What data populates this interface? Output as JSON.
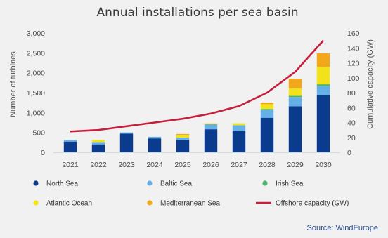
{
  "chart_data": {
    "type": "bar",
    "title": "Annual installations per sea basin",
    "ylabel": "Number of turbines",
    "y2label": "Cumulative capacity (GW)",
    "categories": [
      "2021",
      "2022",
      "2023",
      "2024",
      "2025",
      "2026",
      "2027",
      "2028",
      "2029",
      "2030"
    ],
    "ylim": [
      0,
      3000
    ],
    "y2lim": [
      0,
      160
    ],
    "yticks": [
      "0",
      "500",
      "1,000",
      "1,500",
      "2,000",
      "2,500",
      "3,000"
    ],
    "y2ticks": [
      "0",
      "20",
      "40",
      "60",
      "80",
      "100",
      "120",
      "140",
      "160"
    ],
    "stacked": true,
    "series": [
      {
        "name": "North Sea",
        "color": "#0b3b8c",
        "values": [
          270,
          200,
          470,
          350,
          310,
          580,
          530,
          870,
          1160,
          1440
        ]
      },
      {
        "name": "Baltic Sea",
        "color": "#66b0e8",
        "values": [
          40,
          60,
          30,
          40,
          60,
          130,
          150,
          200,
          230,
          230
        ]
      },
      {
        "name": "Irish Sea",
        "color": "#4bb56b",
        "values": [
          0,
          0,
          0,
          0,
          0,
          0,
          0,
          20,
          30,
          40
        ]
      },
      {
        "name": "Atlantic Ocean",
        "color": "#f2e21a",
        "values": [
          0,
          50,
          0,
          0,
          60,
          20,
          50,
          120,
          190,
          440
        ]
      },
      {
        "name": "Mediterranean Sea",
        "color": "#f3a81c",
        "values": [
          0,
          0,
          0,
          0,
          30,
          0,
          0,
          40,
          240,
          340
        ]
      }
    ],
    "line": {
      "name": "Offshore capacity (GW)",
      "color": "#c61f3b",
      "values": [
        28,
        30,
        35,
        40,
        45,
        52,
        62,
        80,
        108,
        150
      ]
    },
    "legend_position": "bottom",
    "grid": false,
    "source": "Source: WindEurope"
  }
}
